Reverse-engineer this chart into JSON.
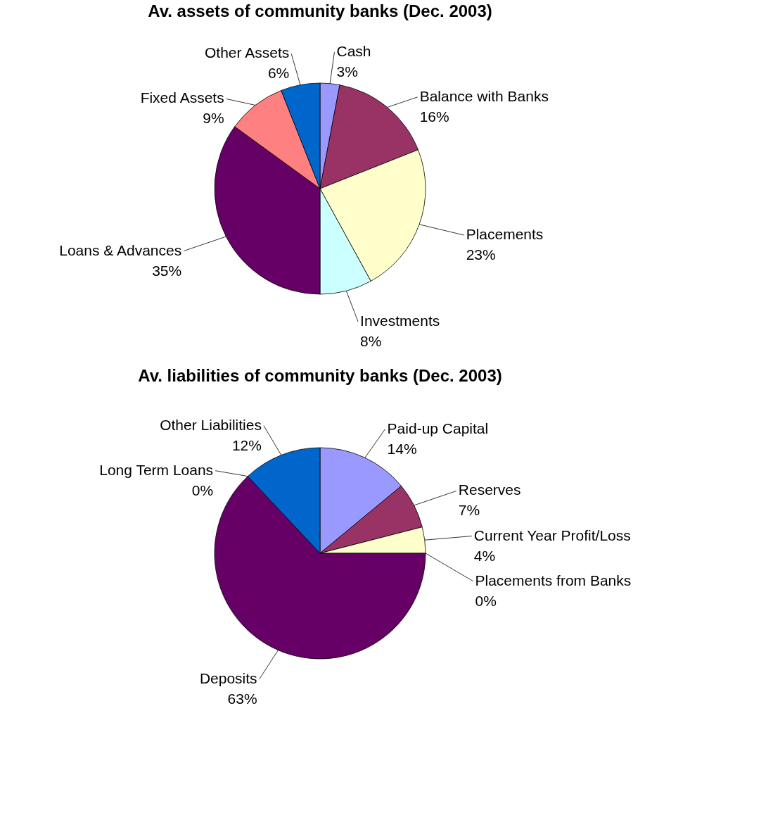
{
  "chart_data": [
    {
      "type": "pie",
      "title": "Av. assets of community banks (Dec. 2003)",
      "categories": [
        "Cash",
        "Balance with Banks",
        "Placements",
        "Investments",
        "Loans & Advances",
        "Fixed Assets",
        "Other Assets"
      ],
      "values": [
        3,
        16,
        23,
        8,
        35,
        9,
        6
      ],
      "value_labels": [
        "3%",
        "16%",
        "23%",
        "8%",
        "35%",
        "9%",
        "6%"
      ],
      "colors": [
        "#9999ff",
        "#993366",
        "#ffffcc",
        "#ccffff",
        "#660066",
        "#ff8080",
        "#0066cc"
      ]
    },
    {
      "type": "pie",
      "title": "Av. liabilities of community banks (Dec. 2003)",
      "categories": [
        "Paid-up Capital",
        "Reserves",
        "Current Year Profit/Loss",
        "Placements from Banks",
        "Deposits",
        "Long Term Loans",
        "Other Liabilities"
      ],
      "values": [
        14,
        7,
        4,
        0,
        63,
        0,
        12
      ],
      "value_labels": [
        "14%",
        "7%",
        "4%",
        "0%",
        "63%",
        "0%",
        "12%"
      ],
      "colors": [
        "#9999ff",
        "#993366",
        "#ffffcc",
        "#ccffff",
        "#660066",
        "#ff8080",
        "#0066cc"
      ]
    }
  ]
}
